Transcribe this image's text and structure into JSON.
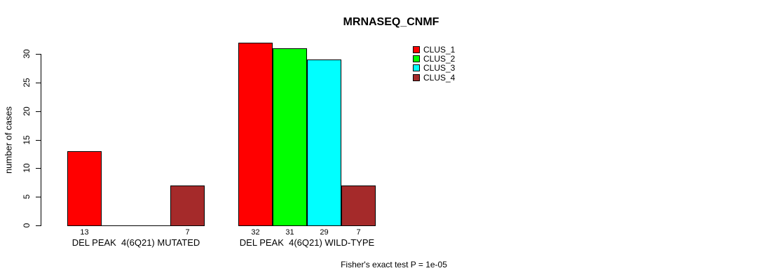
{
  "chart_data": {
    "type": "bar",
    "title": "MRNASEQ_CNMF",
    "ylabel": "number of cases",
    "xlabel": "",
    "yticks": [
      0,
      5,
      10,
      15,
      20,
      25,
      30
    ],
    "ylim": [
      0,
      33
    ],
    "grid": false,
    "legend_position": "top-right",
    "series": [
      "CLUS_1",
      "CLUS_2",
      "CLUS_3",
      "CLUS_4"
    ],
    "colors": [
      "#ff0000",
      "#00ff00",
      "#00ffff",
      "#a52a2a"
    ],
    "groups": [
      {
        "label": "DEL PEAK  4(6Q21) MUTATED",
        "values": [
          13,
          0,
          0,
          7
        ]
      },
      {
        "label": "DEL PEAK  4(6Q21) WILD-TYPE",
        "values": [
          32,
          31,
          29,
          7
        ]
      }
    ],
    "value_label_rule": "shown under each bar only when value > 0",
    "annotation": "Fisher's exact test P = 1e-05"
  }
}
